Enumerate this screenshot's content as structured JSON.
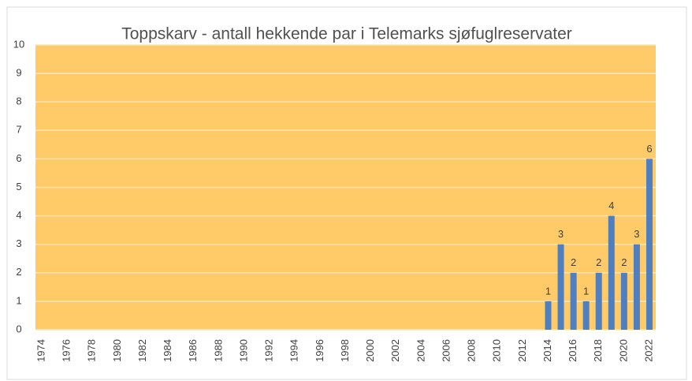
{
  "chart_data": {
    "type": "bar",
    "title": "Toppskarv - antall hekkende par i Telemarks sjøfuglreservater",
    "categories": [
      "1974",
      null,
      "1976",
      null,
      "1978",
      null,
      "1980",
      null,
      "1982",
      null,
      "1984",
      null,
      "1986",
      null,
      "1988",
      null,
      "1990",
      null,
      "1992",
      null,
      "1994",
      null,
      "1996",
      null,
      "1998",
      null,
      "2000",
      null,
      "2002",
      null,
      "2004",
      null,
      "2006",
      null,
      "2008",
      null,
      "2010",
      null,
      "2012",
      null,
      "2014",
      null,
      "2016",
      null,
      "2018",
      null,
      "2020",
      null,
      "2022"
    ],
    "values": [
      null,
      null,
      null,
      null,
      null,
      null,
      null,
      null,
      null,
      null,
      null,
      null,
      null,
      null,
      null,
      null,
      null,
      null,
      null,
      null,
      null,
      null,
      null,
      null,
      null,
      null,
      null,
      null,
      null,
      null,
      null,
      null,
      null,
      null,
      null,
      null,
      null,
      null,
      null,
      null,
      1,
      3,
      2,
      1,
      2,
      4,
      2,
      3,
      6
    ],
    "color": "#4f7fbf",
    "background": "#ffca68",
    "ylim": [
      0,
      10
    ],
    "yticks": [
      0,
      1,
      2,
      3,
      4,
      5,
      6,
      7,
      8,
      9,
      10
    ],
    "grid": true
  }
}
